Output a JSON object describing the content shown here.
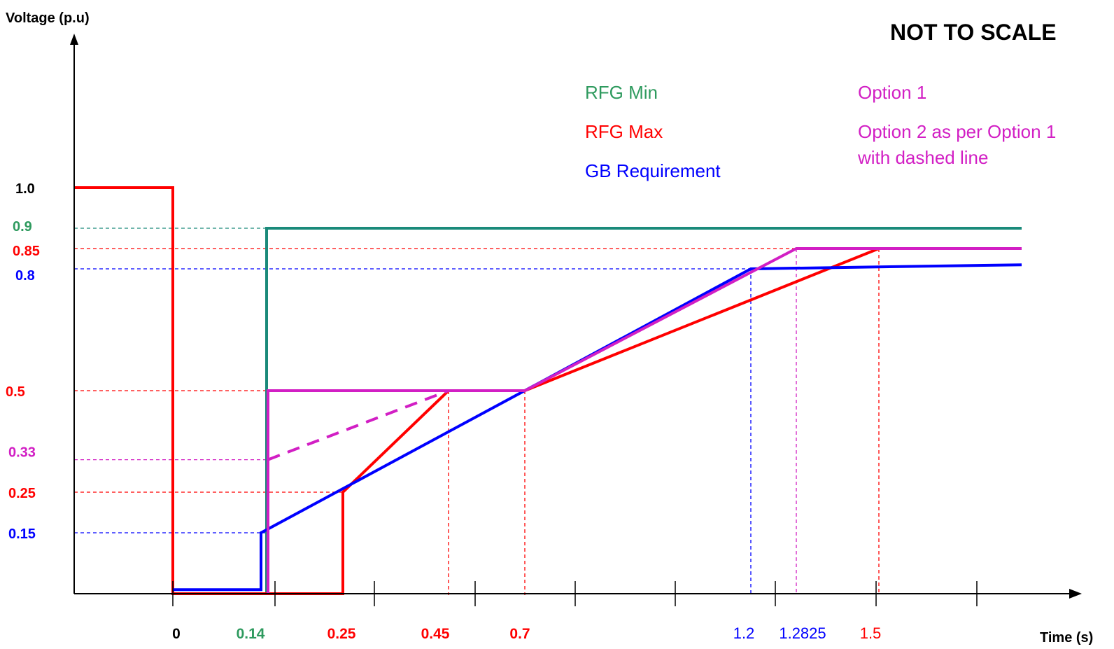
{
  "chart_data": {
    "type": "line",
    "title": "NOT TO SCALE",
    "ylabel": "Voltage (p.u)",
    "xlabel": "Time (s)",
    "colors": {
      "rfg_min": "#1a8a7a",
      "rfg_min_label": "#2e9a5e",
      "rfg_max": "#ff0000",
      "gb": "#0000ff",
      "option": "#d21fc4",
      "axis": "#000000"
    },
    "legend": [
      {
        "text": "RFG Min",
        "series": "rfg_min"
      },
      {
        "text": "RFG Max",
        "series": "rfg_max"
      },
      {
        "text": "GB Requirement",
        "series": "gb"
      },
      {
        "text": "Option 1",
        "series": "option"
      },
      {
        "text": "Option 2 as per Option 1",
        "series": "option"
      },
      {
        "text": "with dashed line",
        "series": "option"
      }
    ],
    "y_ticks": [
      {
        "label": "1.0",
        "value": 1.0,
        "color": "#000000"
      },
      {
        "label": "0.9",
        "value": 0.9,
        "color": "#2e9a5e"
      },
      {
        "label": "0.85",
        "value": 0.85,
        "color": "#ff0000"
      },
      {
        "label": "0.8",
        "value": 0.8,
        "color": "#0000ff"
      },
      {
        "label": "0.5",
        "value": 0.5,
        "color": "#ff0000"
      },
      {
        "label": "0.33",
        "value": 0.33,
        "color": "#d21fc4"
      },
      {
        "label": "0.25",
        "value": 0.25,
        "color": "#ff0000"
      },
      {
        "label": "0.15",
        "value": 0.15,
        "color": "#0000ff"
      }
    ],
    "x_ticks": [
      {
        "label": "0",
        "value": 0,
        "color": "#000000",
        "bold": true
      },
      {
        "label": "0.14",
        "value": 0.14,
        "color": "#2e9a5e",
        "bold": true
      },
      {
        "label": "0.25",
        "value": 0.25,
        "color": "#ff0000",
        "bold": true
      },
      {
        "label": "0.45",
        "value": 0.45,
        "color": "#ff0000",
        "bold": true
      },
      {
        "label": "0.7",
        "value": 0.7,
        "color": "#ff0000",
        "bold": true
      },
      {
        "label": "1.2",
        "value": 1.2,
        "color": "#0000ff",
        "bold": false
      },
      {
        "label": "1.2825",
        "value": 1.2825,
        "color": "#0000ff",
        "bold": false
      },
      {
        "label": "1.5",
        "value": 1.5,
        "color": "#ff0000",
        "bold": false
      }
    ],
    "series": [
      {
        "name": "RFG Min",
        "key": "rfg_min",
        "dashed": false,
        "x": [
          0,
          0.14,
          0.14,
          2.2
        ],
        "y": [
          0,
          0,
          0.9,
          0.9
        ]
      },
      {
        "name": "RFG Max",
        "key": "rfg_max",
        "dashed": false,
        "x": [
          -0.15,
          0,
          0,
          0.25,
          0.25,
          0.45,
          0.7,
          1.5,
          2.2
        ],
        "y": [
          1.0,
          1.0,
          0,
          0,
          0.25,
          0.5,
          0.5,
          0.85,
          0.85
        ]
      },
      {
        "name": "GB Requirement",
        "key": "gb",
        "dashed": false,
        "x": [
          0,
          0.14,
          0.14,
          1.2,
          2.2
        ],
        "y": [
          0.01,
          0.01,
          0.15,
          0.8,
          0.81
        ]
      },
      {
        "name": "Option 1",
        "key": "option",
        "dashed": false,
        "x": [
          0.14,
          0.14,
          0.7,
          1.2825,
          2.2
        ],
        "y": [
          0,
          0.5,
          0.5,
          0.85,
          0.85
        ]
      },
      {
        "name": "Option 2",
        "key": "option",
        "dashed": true,
        "x": [
          0.14,
          0.45
        ],
        "y": [
          0.33,
          0.5
        ]
      }
    ]
  }
}
